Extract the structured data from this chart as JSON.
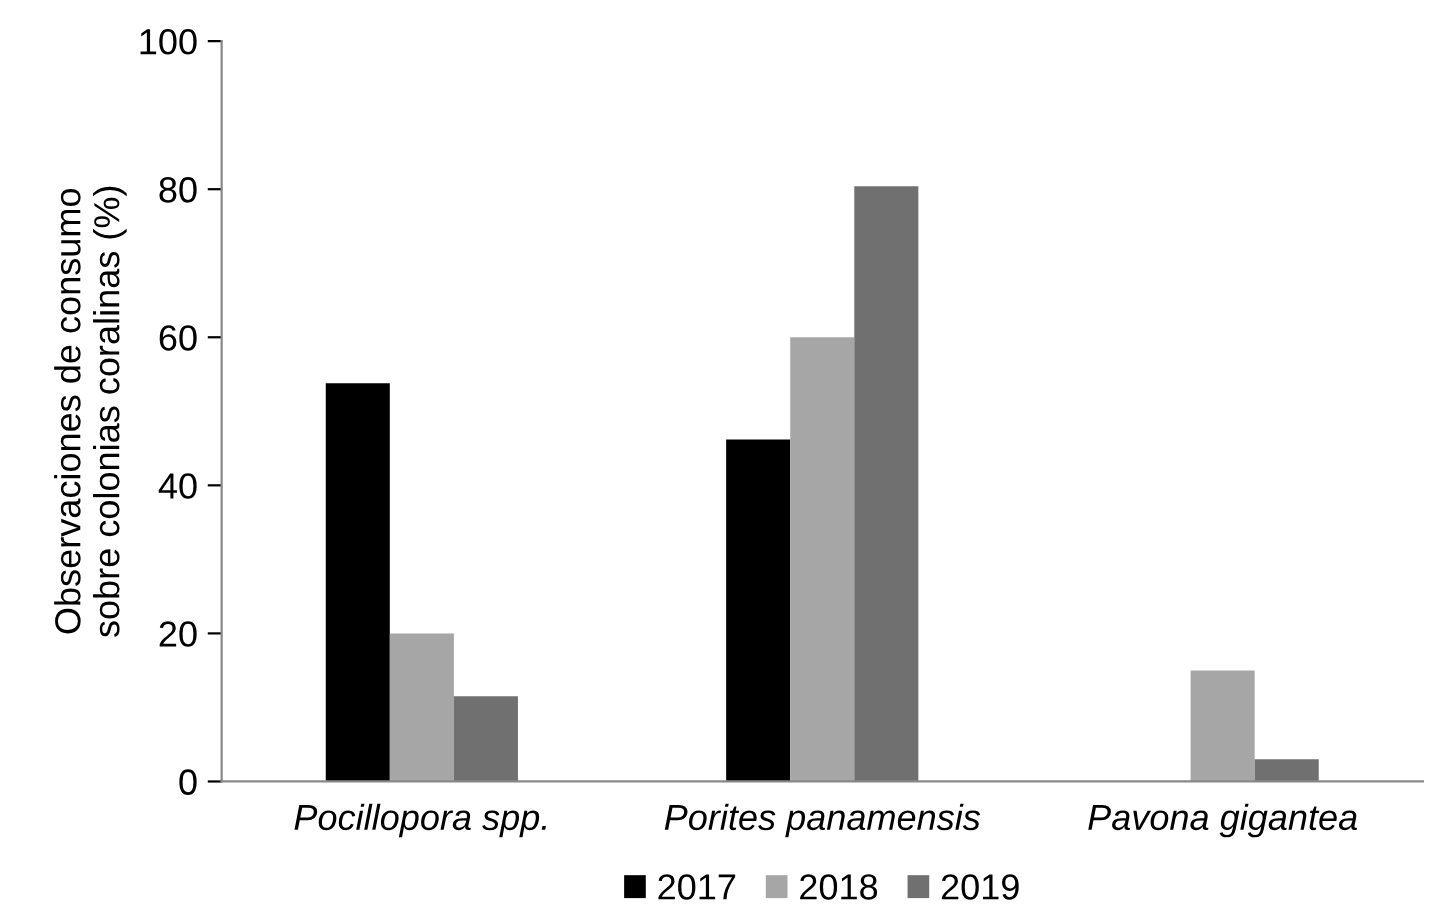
{
  "chart_data": {
    "type": "bar",
    "ylabel": "Observaciones de consumo\nsobre colonias coralinas (%)",
    "categories": [
      "Pocillopora spp.",
      "Porites panamensis",
      "Pavona gigantea"
    ],
    "series": [
      {
        "name": "2017",
        "color": "#000000",
        "values": [
          53.8,
          46.2,
          0
        ]
      },
      {
        "name": "2018",
        "color": "#a6a6a6",
        "values": [
          20,
          60,
          15
        ]
      },
      {
        "name": "2019",
        "color": "#707070",
        "values": [
          11.5,
          80.4,
          3
        ]
      }
    ],
    "ylim": [
      0,
      100
    ],
    "yticks": [
      0,
      20,
      40,
      60,
      80,
      100
    ],
    "grid": false,
    "legend": "bottom"
  }
}
